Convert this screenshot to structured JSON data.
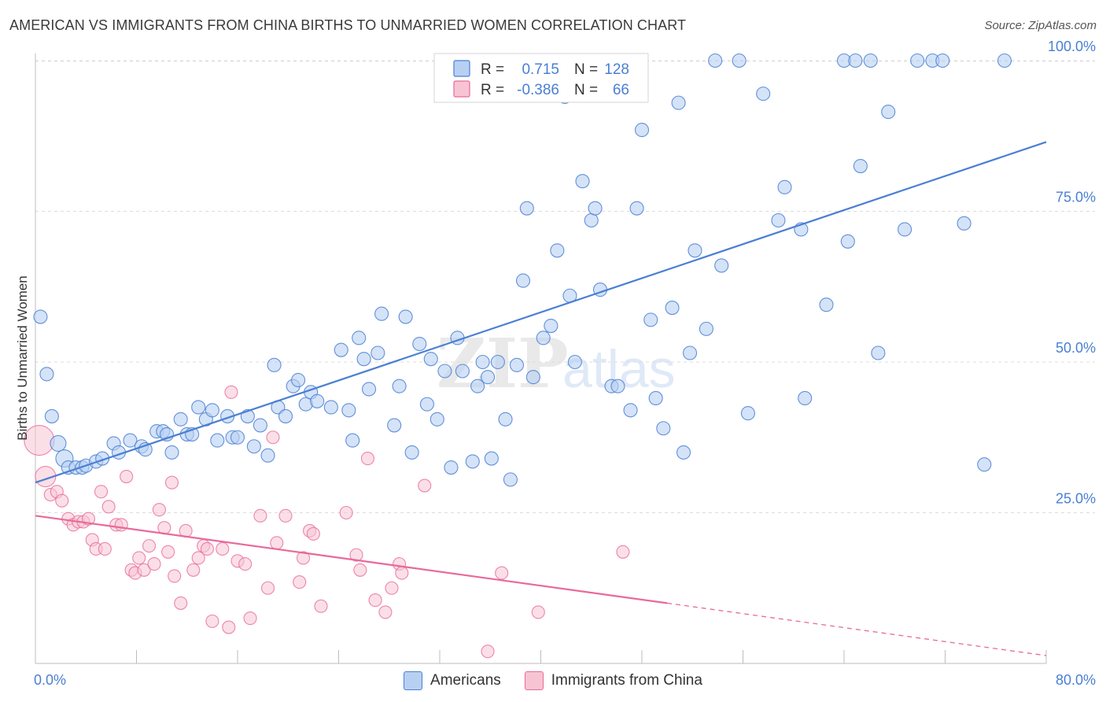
{
  "title": "AMERICAN VS IMMIGRANTS FROM CHINA BIRTHS TO UNMARRIED WOMEN CORRELATION CHART",
  "source": "Source: ZipAtlas.com",
  "watermark": {
    "part1": "ZIP",
    "part2": "atlas"
  },
  "colors": {
    "blue": "#4a7fd4",
    "blue_fill": "#b7d0f2",
    "pink": "#e8699a",
    "pink_fill": "#f7c4d4"
  },
  "legend": {
    "rows": [
      {
        "r_label": "R =",
        "r_value": "0.715",
        "n_label": "N =",
        "n_value": "128"
      },
      {
        "r_label": "R =",
        "r_value": "-0.386",
        "n_label": "N =",
        "n_value": "66"
      }
    ]
  },
  "bottom_legend": {
    "americans": "Americans",
    "china": "Immigrants from China"
  },
  "chart_data": {
    "type": "scatter",
    "xlabel": "",
    "ylabel": "Births to Unmarried Women",
    "xlim": [
      0,
      80
    ],
    "ylim": [
      0,
      104
    ],
    "x_tick_labels": [
      "0.0%",
      "80.0%"
    ],
    "y_ticks": [
      {
        "value": 25,
        "label": "25.0%"
      },
      {
        "value": 50,
        "label": "50.0%"
      },
      {
        "value": 75,
        "label": "75.0%"
      },
      {
        "value": 100,
        "label": "100.0%"
      }
    ],
    "grid": "horizontal dashed",
    "series": [
      {
        "name": "Americans",
        "r": 0.715,
        "n": 128,
        "trend": {
          "x": [
            0,
            80
          ],
          "y": [
            30,
            86.5
          ]
        },
        "points": [
          [
            0.4,
            57.5
          ],
          [
            0.9,
            48
          ],
          [
            1.3,
            41
          ],
          [
            1.8,
            36.5
          ],
          [
            2.3,
            34
          ],
          [
            2.6,
            32.5
          ],
          [
            3.2,
            32.5
          ],
          [
            3.7,
            32.5
          ],
          [
            4.0,
            32.8
          ],
          [
            4.8,
            33.5
          ],
          [
            5.3,
            34
          ],
          [
            6.2,
            36.5
          ],
          [
            6.6,
            35
          ],
          [
            7.5,
            37
          ],
          [
            8.4,
            36
          ],
          [
            8.7,
            35.5
          ],
          [
            9.6,
            38.5
          ],
          [
            10.1,
            38.5
          ],
          [
            10.4,
            38
          ],
          [
            10.8,
            35
          ],
          [
            11.5,
            40.5
          ],
          [
            12.0,
            38
          ],
          [
            12.4,
            38
          ],
          [
            12.9,
            42.5
          ],
          [
            13.5,
            40.5
          ],
          [
            14.0,
            42
          ],
          [
            14.4,
            37
          ],
          [
            15.2,
            41
          ],
          [
            15.6,
            37.5
          ],
          [
            16.0,
            37.5
          ],
          [
            16.8,
            41
          ],
          [
            17.3,
            36
          ],
          [
            17.8,
            39.5
          ],
          [
            18.4,
            34.5
          ],
          [
            18.9,
            49.5
          ],
          [
            19.2,
            42.5
          ],
          [
            19.8,
            41
          ],
          [
            20.4,
            46
          ],
          [
            20.8,
            47
          ],
          [
            21.4,
            43
          ],
          [
            21.8,
            45
          ],
          [
            22.3,
            43.5
          ],
          [
            23.4,
            42.5
          ],
          [
            24.2,
            52
          ],
          [
            24.8,
            42
          ],
          [
            25.1,
            37
          ],
          [
            25.6,
            54
          ],
          [
            26.0,
            50.5
          ],
          [
            26.4,
            45.5
          ],
          [
            27.1,
            51.5
          ],
          [
            27.4,
            58
          ],
          [
            28.4,
            39.5
          ],
          [
            28.8,
            46
          ],
          [
            29.3,
            57.5
          ],
          [
            29.8,
            35
          ],
          [
            30.4,
            53
          ],
          [
            31.0,
            43
          ],
          [
            31.3,
            50.5
          ],
          [
            31.8,
            40.5
          ],
          [
            32.4,
            48.5
          ],
          [
            32.9,
            32.5
          ],
          [
            33.4,
            54
          ],
          [
            33.8,
            48.5
          ],
          [
            34.6,
            33.5
          ],
          [
            35.0,
            46
          ],
          [
            35.4,
            50
          ],
          [
            35.8,
            47.5
          ],
          [
            36.1,
            34
          ],
          [
            36.6,
            50
          ],
          [
            37.2,
            40.5
          ],
          [
            37.6,
            30.5
          ],
          [
            38.1,
            49.5
          ],
          [
            38.6,
            63.5
          ],
          [
            38.9,
            75.5
          ],
          [
            39.4,
            47.5
          ],
          [
            40.2,
            54
          ],
          [
            40.8,
            56
          ],
          [
            41.3,
            68.5
          ],
          [
            41.9,
            94
          ],
          [
            42.3,
            61
          ],
          [
            42.7,
            50
          ],
          [
            43.3,
            80
          ],
          [
            44.0,
            73.5
          ],
          [
            44.3,
            75.5
          ],
          [
            44.7,
            62
          ],
          [
            45.6,
            46
          ],
          [
            46.1,
            46
          ],
          [
            47.1,
            42
          ],
          [
            47.6,
            75.5
          ],
          [
            48.0,
            88.5
          ],
          [
            48.7,
            57
          ],
          [
            49.1,
            44
          ],
          [
            49.7,
            39
          ],
          [
            50.4,
            59
          ],
          [
            50.9,
            93
          ],
          [
            51.3,
            35
          ],
          [
            51.8,
            51.5
          ],
          [
            52.2,
            68.5
          ],
          [
            53.1,
            55.5
          ],
          [
            53.8,
            100
          ],
          [
            54.3,
            66
          ],
          [
            55.7,
            100
          ],
          [
            56.4,
            41.5
          ],
          [
            57.6,
            94.5
          ],
          [
            58.8,
            73.5
          ],
          [
            59.3,
            79
          ],
          [
            60.6,
            72
          ],
          [
            60.9,
            44
          ],
          [
            62.6,
            59.5
          ],
          [
            64.0,
            100
          ],
          [
            64.3,
            70
          ],
          [
            64.9,
            100
          ],
          [
            65.3,
            82.5
          ],
          [
            66.1,
            100
          ],
          [
            66.7,
            51.5
          ],
          [
            67.5,
            91.5
          ],
          [
            68.8,
            72
          ],
          [
            69.8,
            100
          ],
          [
            71.0,
            100
          ],
          [
            71.8,
            100
          ],
          [
            73.5,
            73
          ],
          [
            75.1,
            33
          ],
          [
            76.7,
            100
          ]
        ]
      },
      {
        "name": "Immigrants from China",
        "r": -0.386,
        "n": 66,
        "trend": {
          "x": [
            0,
            50
          ],
          "y": [
            24.5,
            10
          ],
          "dashed_extension": {
            "x": [
              50,
              80
            ],
            "y": [
              10,
              1.3
            ]
          }
        },
        "points": [
          [
            0.3,
            37
          ],
          [
            0.8,
            31
          ],
          [
            1.2,
            28
          ],
          [
            1.7,
            28.5
          ],
          [
            2.1,
            27
          ],
          [
            2.6,
            24
          ],
          [
            3.0,
            23
          ],
          [
            3.4,
            23.5
          ],
          [
            3.8,
            23.5
          ],
          [
            4.2,
            24
          ],
          [
            4.5,
            20.5
          ],
          [
            4.8,
            19
          ],
          [
            5.2,
            28.5
          ],
          [
            5.5,
            19
          ],
          [
            5.8,
            26
          ],
          [
            6.4,
            23
          ],
          [
            6.8,
            23
          ],
          [
            7.2,
            31
          ],
          [
            7.6,
            15.5
          ],
          [
            7.9,
            15
          ],
          [
            8.2,
            17.5
          ],
          [
            8.6,
            15.5
          ],
          [
            9.0,
            19.5
          ],
          [
            9.4,
            16.5
          ],
          [
            9.8,
            25.5
          ],
          [
            10.2,
            22.5
          ],
          [
            10.5,
            18.5
          ],
          [
            10.8,
            30
          ],
          [
            11.0,
            14.5
          ],
          [
            11.5,
            10
          ],
          [
            11.9,
            22
          ],
          [
            12.5,
            15.5
          ],
          [
            12.9,
            17.5
          ],
          [
            13.3,
            19.5
          ],
          [
            13.6,
            19
          ],
          [
            14.0,
            7
          ],
          [
            14.8,
            19
          ],
          [
            15.3,
            6
          ],
          [
            15.5,
            45
          ],
          [
            16.0,
            17
          ],
          [
            16.6,
            16.5
          ],
          [
            17.0,
            7.5
          ],
          [
            17.8,
            24.5
          ],
          [
            18.4,
            12.5
          ],
          [
            18.8,
            37.5
          ],
          [
            19.1,
            20
          ],
          [
            19.8,
            24.5
          ],
          [
            20.9,
            13.5
          ],
          [
            21.2,
            17.5
          ],
          [
            21.7,
            22
          ],
          [
            22.0,
            21.5
          ],
          [
            22.6,
            9.5
          ],
          [
            24.6,
            25
          ],
          [
            25.4,
            18
          ],
          [
            25.7,
            15.5
          ],
          [
            26.3,
            34
          ],
          [
            26.9,
            10.5
          ],
          [
            27.7,
            8.5
          ],
          [
            28.2,
            12.5
          ],
          [
            28.8,
            16.5
          ],
          [
            29.0,
            15
          ],
          [
            30.8,
            29.5
          ],
          [
            35.8,
            2
          ],
          [
            36.9,
            15
          ],
          [
            39.8,
            8.5
          ],
          [
            46.5,
            18.5
          ]
        ]
      }
    ]
  }
}
